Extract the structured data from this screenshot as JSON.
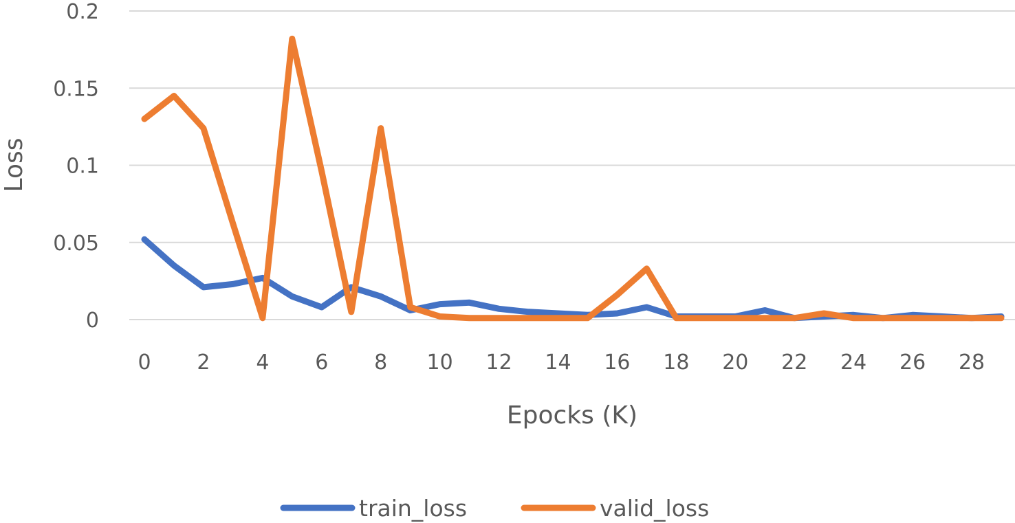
{
  "chart_data": {
    "type": "line",
    "title": "",
    "xlabel": "Epocks (K)",
    "ylabel": "Loss",
    "x": [
      0,
      1,
      2,
      3,
      4,
      5,
      6,
      7,
      8,
      9,
      10,
      11,
      12,
      13,
      14,
      15,
      16,
      17,
      18,
      19,
      20,
      21,
      22,
      23,
      24,
      25,
      26,
      27,
      28,
      29
    ],
    "xticks": [
      0,
      2,
      4,
      6,
      8,
      10,
      12,
      14,
      16,
      18,
      20,
      22,
      24,
      26,
      28
    ],
    "yticks": [
      0,
      0.05,
      0.1,
      0.15,
      0.2
    ],
    "ytick_labels": [
      "0",
      "0.05",
      "0.1",
      "0.15",
      "0.2"
    ],
    "xlim": [
      0,
      29
    ],
    "ylim": [
      0,
      0.2
    ],
    "grid": "horizontal",
    "legend_position": "bottom-center",
    "series": [
      {
        "name": "train_loss",
        "color": "#4472c4",
        "values": [
          0.052,
          0.035,
          0.021,
          0.023,
          0.027,
          0.015,
          0.008,
          0.021,
          0.015,
          0.006,
          0.01,
          0.011,
          0.007,
          0.005,
          0.004,
          0.003,
          0.004,
          0.008,
          0.002,
          0.002,
          0.002,
          0.006,
          0.001,
          0.002,
          0.003,
          0.001,
          0.003,
          0.002,
          0.001,
          0.002
        ]
      },
      {
        "name": "valid_loss",
        "color": "#ed7d31",
        "values": [
          0.13,
          0.145,
          0.124,
          0.062,
          0.001,
          0.182,
          0.096,
          0.005,
          0.124,
          0.008,
          0.002,
          0.001,
          0.001,
          0.001,
          0.001,
          0.001,
          0.016,
          0.033,
          0.001,
          0.001,
          0.001,
          0.001,
          0.001,
          0.004,
          0.001,
          0.001,
          0.001,
          0.001,
          0.001,
          0.001
        ]
      }
    ]
  }
}
